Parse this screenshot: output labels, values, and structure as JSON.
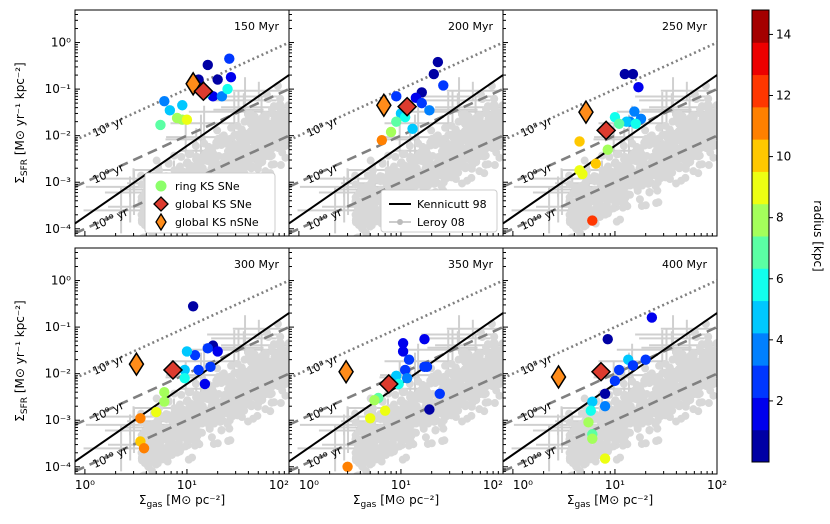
{
  "chart_data": {
    "type": "scatter",
    "x": {
      "label_main": "Σ",
      "label_sub": "gas",
      "label_unit": " [M⊙ pc⁻²]",
      "lim": [
        0.8,
        100
      ],
      "scale": "log",
      "ticks": [
        {
          "v": 1,
          "t": "10⁰"
        },
        {
          "v": 10,
          "t": "10¹"
        },
        {
          "v": 100,
          "t": "10²"
        }
      ]
    },
    "y": {
      "label_main": "Σ",
      "label_sub": "SFR",
      "label_unit": " [M⊙ yr⁻¹ kpc⁻²]",
      "lim": [
        7e-05,
        5
      ],
      "scale": "log",
      "ticks": [
        {
          "v": 0.0001,
          "t": "10⁻⁴"
        },
        {
          "v": 0.001,
          "t": "10⁻³"
        },
        {
          "v": 0.01,
          "t": "10⁻²"
        },
        {
          "v": 0.1,
          "t": "10⁻¹"
        },
        {
          "v": 1,
          "t": "10⁰"
        }
      ]
    },
    "kennicutt_line": {
      "label": "Kennicutt 98",
      "x": [
        0.8,
        100
      ],
      "y": [
        0.00013,
        0.2
      ]
    },
    "depletion_lines": [
      {
        "label": "10⁸ yr",
        "y_at_1": 0.01,
        "style": "dotted"
      },
      {
        "label": "10⁹ yr",
        "y_at_1": 0.001,
        "style": "dashed"
      },
      {
        "label": "10¹⁰ yr",
        "y_at_1": 0.0001,
        "style": "dashed"
      }
    ],
    "colorbar": {
      "label": "radius [kpc]",
      "range": [
        0,
        14.8
      ],
      "ticks": [
        2,
        4,
        6,
        8,
        10,
        12,
        14
      ],
      "tick_labels": [
        "2",
        "4",
        "6",
        "8",
        "10",
        "12",
        "14"
      ]
    },
    "legend": [
      {
        "label": "ring KS SNe",
        "marker": "circle",
        "color": "#8cff6a"
      },
      {
        "label": "global KS SNe",
        "marker": "diamond",
        "color": "#dd3b2e"
      },
      {
        "label": "global KS nSNe",
        "marker": "diamond-tall",
        "color": "#ff8c1a"
      },
      {
        "label": "Kennicutt 98",
        "marker": "line",
        "color": "#000000"
      },
      {
        "label": "Leroy 08",
        "marker": "errorbar",
        "color": "#bbbbbb"
      }
    ],
    "panels": [
      {
        "title": "150 Myr",
        "global_sne": [
          14.5,
          0.09
        ],
        "global_nsne": [
          11.5,
          0.13
        ],
        "ring": [
          [
            26,
            0.45
          ],
          [
            16,
            0.33
          ],
          [
            20,
            0.16
          ],
          [
            27,
            0.18
          ],
          [
            13,
            0.16
          ],
          [
            18,
            0.07
          ],
          [
            22,
            0.07
          ],
          [
            6,
            0.055
          ],
          [
            6.8,
            0.035
          ],
          [
            9,
            0.045
          ],
          [
            15,
            0.08
          ],
          [
            25,
            0.1
          ],
          [
            5.5,
            0.017
          ],
          [
            8,
            0.024
          ],
          [
            9,
            0.022
          ],
          [
            10,
            0.022
          ]
        ],
        "ring_r": [
          3,
          1,
          1,
          2,
          1,
          2,
          4,
          4,
          5,
          5,
          6,
          6,
          7,
          8,
          8,
          9
        ]
      },
      {
        "title": "200 Myr",
        "global_sne": [
          11.5,
          0.042
        ],
        "global_nsne": [
          6.8,
          0.045
        ],
        "ring": [
          [
            23,
            0.38
          ],
          [
            21,
            0.21
          ],
          [
            16,
            0.085
          ],
          [
            26,
            0.12
          ],
          [
            14,
            0.065
          ],
          [
            9,
            0.07
          ],
          [
            10,
            0.03
          ],
          [
            11,
            0.025
          ],
          [
            16,
            0.05
          ],
          [
            19,
            0.035
          ],
          [
            13,
            0.014
          ],
          [
            9,
            0.02
          ],
          [
            8,
            0.012
          ],
          [
            6.5,
            0.008
          ],
          [
            12,
            0.04
          ]
        ],
        "ring_r": [
          1,
          1,
          1,
          3,
          2,
          3,
          5,
          6,
          3,
          4,
          5,
          7,
          8,
          11,
          6
        ]
      },
      {
        "title": "250 Myr",
        "global_sne": [
          8.2,
          0.013
        ],
        "global_nsne": [
          5.2,
          0.032
        ],
        "ring": [
          [
            12.5,
            0.21
          ],
          [
            15,
            0.21
          ],
          [
            17,
            0.11
          ],
          [
            15.5,
            0.033
          ],
          [
            18,
            0.023
          ],
          [
            14,
            0.02
          ],
          [
            13,
            0.02
          ],
          [
            16,
            0.018
          ],
          [
            10,
            0.025
          ],
          [
            11,
            0.018
          ],
          [
            8.5,
            0.005
          ],
          [
            6.5,
            0.0025
          ],
          [
            4.5,
            0.0075
          ],
          [
            4.5,
            0.0018
          ],
          [
            4.8,
            0.0015
          ],
          [
            6,
            0.00015
          ]
        ],
        "ring_r": [
          1,
          1,
          2,
          4,
          4,
          4,
          5,
          6,
          6,
          7,
          8,
          10,
          10,
          9,
          9,
          12
        ]
      },
      {
        "title": "300 Myr",
        "global_sne": [
          7.3,
          0.012
        ],
        "global_nsne": [
          3.2,
          0.016
        ],
        "ring": [
          [
            11.5,
            0.28
          ],
          [
            18,
            0.04
          ],
          [
            20,
            0.03
          ],
          [
            16,
            0.035
          ],
          [
            12,
            0.025
          ],
          [
            13,
            0.012
          ],
          [
            17,
            0.014
          ],
          [
            15,
            0.006
          ],
          [
            9.5,
            0.012
          ],
          [
            9.5,
            0.008
          ],
          [
            6,
            0.004
          ],
          [
            6,
            0.0025
          ],
          [
            5,
            0.0015
          ],
          [
            3.5,
            0.0011
          ],
          [
            3.5,
            0.00035
          ],
          [
            3.8,
            0.00025
          ],
          [
            10,
            0.03
          ]
        ],
        "ring_r": [
          1,
          1,
          2,
          3,
          3,
          3,
          3,
          2,
          5,
          6,
          8,
          8,
          9,
          11,
          10,
          11,
          5
        ]
      },
      {
        "title": "350 Myr",
        "global_sne": [
          7.6,
          0.006
        ],
        "global_nsne": [
          2.9,
          0.011
        ],
        "ring": [
          [
            10.5,
            0.045
          ],
          [
            10.5,
            0.03
          ],
          [
            17,
            0.055
          ],
          [
            12,
            0.02
          ],
          [
            11,
            0.012
          ],
          [
            11.5,
            0.008
          ],
          [
            17,
            0.014
          ],
          [
            18,
            0.014
          ],
          [
            24,
            0.0037
          ],
          [
            19,
            0.0017
          ],
          [
            9,
            0.009
          ],
          [
            9.5,
            0.006
          ],
          [
            6,
            0.003
          ],
          [
            5.5,
            0.0027
          ],
          [
            7,
            0.0016
          ],
          [
            5,
            0.0011
          ],
          [
            3,
            0.0001
          ]
        ],
        "ring_r": [
          2,
          2,
          2,
          3,
          3,
          4,
          3,
          3,
          3,
          1,
          5,
          6,
          7,
          8,
          9,
          9,
          11
        ]
      },
      {
        "title": "400 Myr",
        "global_sne": [
          7.3,
          0.011
        ],
        "global_nsne": [
          2.8,
          0.0085
        ],
        "ring": [
          [
            23,
            0.16
          ],
          [
            8.5,
            0.055
          ],
          [
            13.5,
            0.02
          ],
          [
            20,
            0.02
          ],
          [
            15,
            0.015
          ],
          [
            11,
            0.012
          ],
          [
            10,
            0.007
          ],
          [
            8,
            0.0037
          ],
          [
            8,
            0.002
          ],
          [
            6,
            0.0025
          ],
          [
            5.8,
            0.0016
          ],
          [
            5.5,
            0.0009
          ],
          [
            6,
            0.0005
          ],
          [
            8,
            0.00015
          ],
          [
            6,
            0.0004
          ]
        ],
        "ring_r": [
          2,
          1,
          5,
          3,
          3,
          3,
          3,
          1,
          4,
          5,
          6,
          8,
          7,
          9,
          8
        ]
      }
    ]
  }
}
